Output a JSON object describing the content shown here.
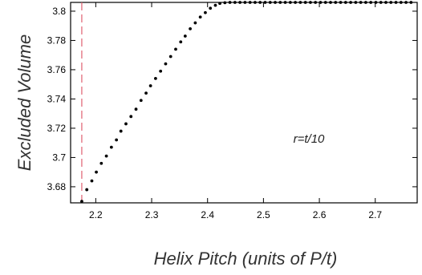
{
  "chart_data": {
    "type": "scatter",
    "xlabel": "Helix Pitch (units of P/t)",
    "ylabel": "Excluded Volume",
    "annotation": "r=t/10",
    "xlim": [
      2.155,
      2.775
    ],
    "ylim": [
      3.669,
      3.806
    ],
    "x_ticks": [
      2.2,
      2.3,
      2.4,
      2.5,
      2.6,
      2.7
    ],
    "x_tick_labels": [
      "2.2",
      "2.3",
      "2.4",
      "2.5",
      "2.6",
      "2.7"
    ],
    "y_ticks": [
      3.68,
      3.7,
      3.72,
      3.74,
      3.76,
      3.78,
      3.8
    ],
    "y_tick_labels": [
      "3.68",
      "3.7",
      "3.72",
      "3.74",
      "3.76",
      "3.78",
      "3.8"
    ],
    "marker_color": "#000000",
    "vline": {
      "x": 2.175,
      "color": "#e06070",
      "style": "dashed"
    },
    "series": [
      {
        "points": [
          [
            2.175,
            3.67
          ],
          [
            2.184,
            3.678
          ],
          [
            2.193,
            3.684
          ],
          [
            2.201,
            3.69
          ],
          [
            2.21,
            3.696
          ],
          [
            2.219,
            3.701
          ],
          [
            2.228,
            3.707
          ],
          [
            2.237,
            3.712
          ],
          [
            2.245,
            3.718
          ],
          [
            2.254,
            3.723
          ],
          [
            2.263,
            3.728
          ],
          [
            2.272,
            3.733
          ],
          [
            2.281,
            3.739
          ],
          [
            2.29,
            3.744
          ],
          [
            2.298,
            3.749
          ],
          [
            2.307,
            3.754
          ],
          [
            2.316,
            3.759
          ],
          [
            2.325,
            3.764
          ],
          [
            2.334,
            3.769
          ],
          [
            2.343,
            3.774
          ],
          [
            2.352,
            3.779
          ],
          [
            2.36,
            3.783
          ],
          [
            2.369,
            3.788
          ],
          [
            2.378,
            3.792
          ],
          [
            2.387,
            3.796
          ],
          [
            2.396,
            3.799
          ],
          [
            2.405,
            3.802
          ],
          [
            2.414,
            3.804
          ],
          [
            2.422,
            3.8053
          ],
          [
            2.431,
            3.8058
          ],
          [
            2.44,
            3.806
          ],
          [
            2.449,
            3.806
          ],
          [
            2.458,
            3.806
          ],
          [
            2.467,
            3.806
          ],
          [
            2.476,
            3.806
          ],
          [
            2.485,
            3.806
          ],
          [
            2.494,
            3.806
          ],
          [
            2.503,
            3.806
          ],
          [
            2.512,
            3.806
          ],
          [
            2.521,
            3.806
          ],
          [
            2.53,
            3.806
          ],
          [
            2.539,
            3.806
          ],
          [
            2.548,
            3.806
          ],
          [
            2.557,
            3.806
          ],
          [
            2.566,
            3.806
          ],
          [
            2.575,
            3.806
          ],
          [
            2.584,
            3.806
          ],
          [
            2.593,
            3.806
          ],
          [
            2.602,
            3.806
          ],
          [
            2.611,
            3.806
          ],
          [
            2.62,
            3.806
          ],
          [
            2.629,
            3.806
          ],
          [
            2.638,
            3.806
          ],
          [
            2.647,
            3.806
          ],
          [
            2.656,
            3.806
          ],
          [
            2.665,
            3.806
          ],
          [
            2.674,
            3.806
          ],
          [
            2.683,
            3.806
          ],
          [
            2.692,
            3.806
          ],
          [
            2.701,
            3.806
          ],
          [
            2.71,
            3.806
          ],
          [
            2.719,
            3.806
          ],
          [
            2.728,
            3.806
          ],
          [
            2.737,
            3.806
          ],
          [
            2.746,
            3.806
          ],
          [
            2.755,
            3.806
          ],
          [
            2.764,
            3.806
          ]
        ]
      }
    ]
  }
}
